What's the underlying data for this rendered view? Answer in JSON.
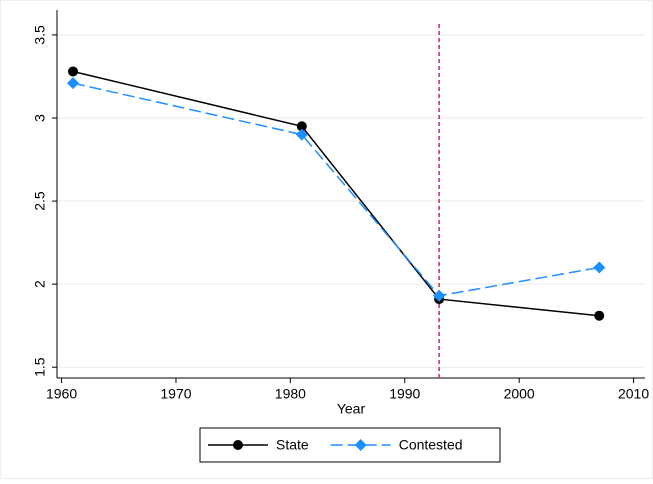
{
  "chart_data": {
    "type": "line",
    "x_label": "Year",
    "x": [
      1961,
      1981,
      1993,
      2007
    ],
    "series": [
      {
        "name": "State",
        "color": "#000000",
        "marker": "circle",
        "dash": "solid",
        "values": [
          3.28,
          2.95,
          1.91,
          1.81
        ]
      },
      {
        "name": "Contested",
        "color": "#1e8fff",
        "marker": "diamond",
        "dash": "dashed",
        "values": [
          3.21,
          2.9,
          1.93,
          2.1
        ]
      }
    ],
    "xlim": [
      1959.6,
      2011
    ],
    "xticks": [
      1960,
      1970,
      1980,
      1990,
      2000,
      2010
    ],
    "ylim": [
      1.435,
      3.65
    ],
    "yticks": [
      1.5,
      2,
      2.5,
      3,
      3.5
    ],
    "vline": {
      "x": 1993,
      "color": "#d6204b"
    },
    "grid": true,
    "legend": "bottom"
  }
}
